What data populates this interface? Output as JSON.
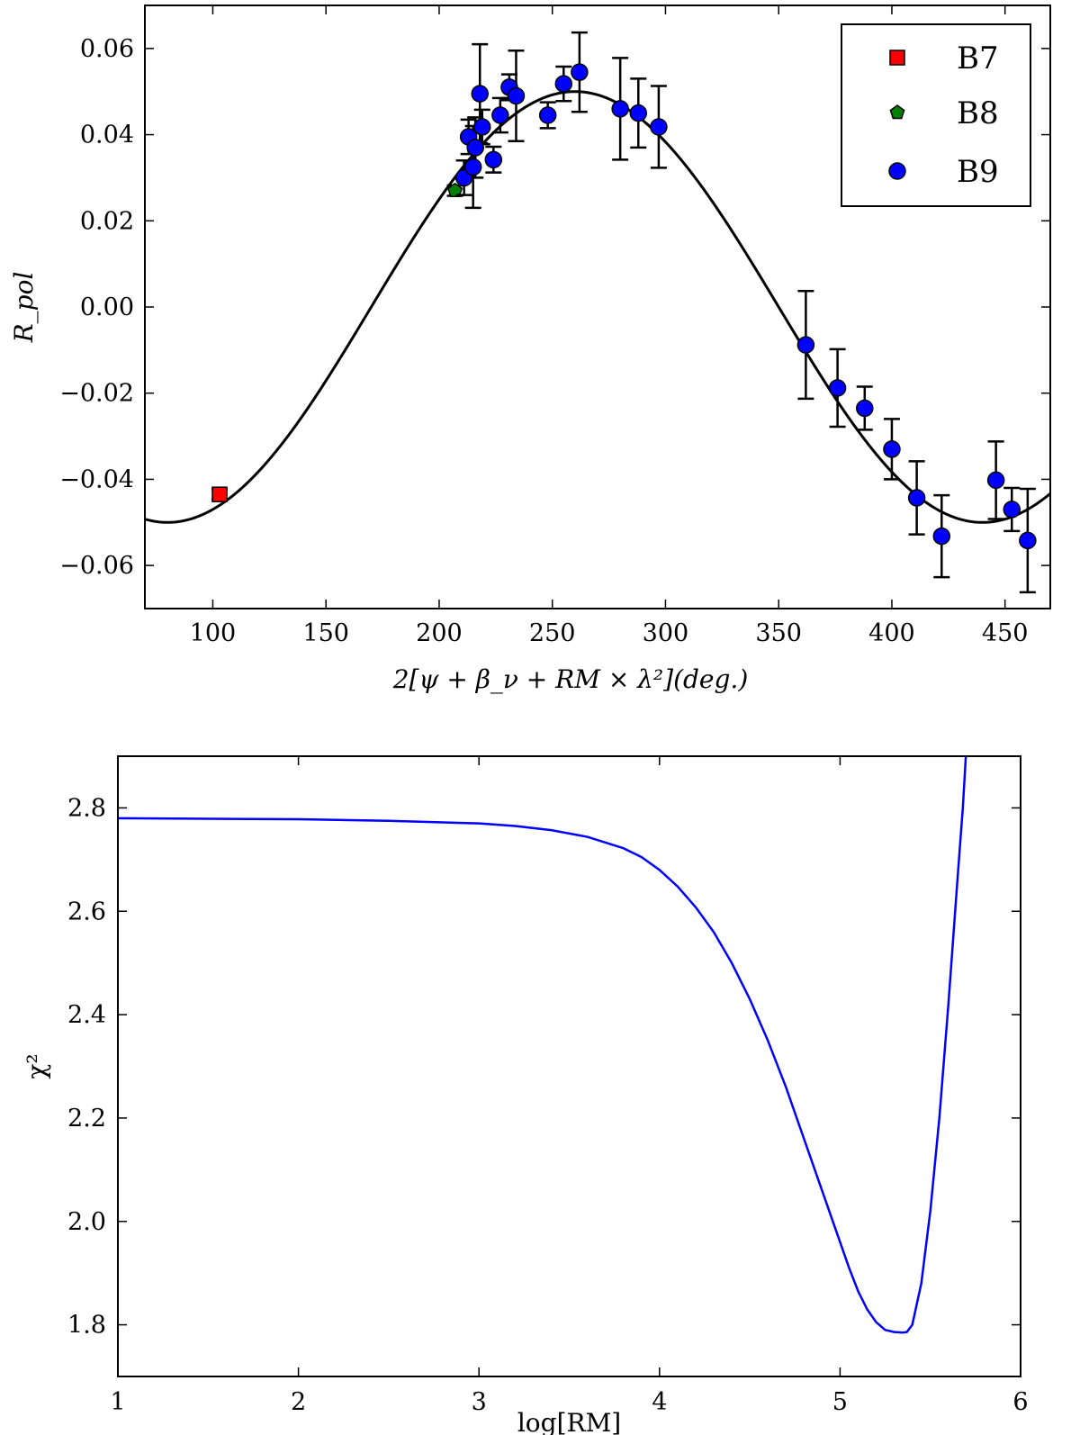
{
  "chart_data": [
    {
      "type": "scatter",
      "id": "top",
      "title": "",
      "xlabel": "2[ψ + β_ν + RM × λ²](deg.)",
      "ylabel": "R_pol",
      "xlim": [
        70,
        470
      ],
      "ylim": [
        -0.07,
        0.07
      ],
      "xticks": [
        100,
        150,
        200,
        250,
        300,
        350,
        400,
        450
      ],
      "yticks": [
        -0.06,
        -0.04,
        -0.02,
        0.0,
        0.02,
        0.04,
        0.06
      ],
      "ytick_labels": [
        "−0.06",
        "−0.04",
        "−0.02",
        "0.00",
        "0.02",
        "0.04",
        "0.06"
      ],
      "legend_position": "top-right",
      "model_curve": {
        "label": "",
        "amplitude": 0.05,
        "peak_x": 260,
        "color": "#000000"
      },
      "series": [
        {
          "name": "B7",
          "marker": "square",
          "color": "#ff0000",
          "points": [
            {
              "x": 103,
              "y": -0.0435,
              "err": 0.0012
            }
          ]
        },
        {
          "name": "B8",
          "marker": "pentagon",
          "color": "#008000",
          "points": [
            {
              "x": 207,
              "y": 0.027,
              "err": 0.0012
            }
          ]
        },
        {
          "name": "B9",
          "marker": "circle",
          "color": "#0000ff",
          "points": [
            {
              "x": 211,
              "y": 0.03,
              "err": 0.004
            },
            {
              "x": 213,
              "y": 0.0395,
              "err": 0.004
            },
            {
              "x": 215,
              "y": 0.0325,
              "err": 0.0095
            },
            {
              "x": 216,
              "y": 0.037,
              "err": 0.007
            },
            {
              "x": 218,
              "y": 0.0495,
              "err": 0.0115
            },
            {
              "x": 219,
              "y": 0.0418,
              "err": 0.004
            },
            {
              "x": 224,
              "y": 0.0342,
              "err": 0.003
            },
            {
              "x": 227,
              "y": 0.0445,
              "err": 0.004
            },
            {
              "x": 231,
              "y": 0.051,
              "err": 0.003
            },
            {
              "x": 234,
              "y": 0.049,
              "err": 0.0105
            },
            {
              "x": 248,
              "y": 0.0445,
              "err": 0.003
            },
            {
              "x": 255,
              "y": 0.0518,
              "err": 0.004
            },
            {
              "x": 262,
              "y": 0.0545,
              "err": 0.0092
            },
            {
              "x": 280,
              "y": 0.046,
              "err": 0.0118
            },
            {
              "x": 288,
              "y": 0.045,
              "err": 0.008
            },
            {
              "x": 297,
              "y": 0.0418,
              "err": 0.0095
            },
            {
              "x": 362,
              "y": -0.0088,
              "err": 0.0125
            },
            {
              "x": 376,
              "y": -0.0188,
              "err": 0.009
            },
            {
              "x": 388,
              "y": -0.0235,
              "err": 0.005
            },
            {
              "x": 400,
              "y": -0.033,
              "err": 0.007
            },
            {
              "x": 411,
              "y": -0.0443,
              "err": 0.0085
            },
            {
              "x": 422,
              "y": -0.0532,
              "err": 0.0095
            },
            {
              "x": 446,
              "y": -0.0402,
              "err": 0.009
            },
            {
              "x": 453,
              "y": -0.047,
              "err": 0.005
            },
            {
              "x": 460,
              "y": -0.0542,
              "err": 0.012
            }
          ]
        }
      ]
    },
    {
      "type": "line",
      "id": "bottom",
      "title": "",
      "xlabel": "log[RM]",
      "ylabel": "χ²",
      "xlim": [
        1,
        6
      ],
      "ylim": [
        1.7,
        2.9
      ],
      "xticks": [
        1,
        2,
        3,
        4,
        5,
        6
      ],
      "yticks": [
        1.8,
        2.0,
        2.2,
        2.4,
        2.6,
        2.8
      ],
      "ytick_labels": [
        "1.8",
        "2.0",
        "2.2",
        "2.4",
        "2.6",
        "2.8"
      ],
      "series": [
        {
          "name": "chi2",
          "color": "#0000ff",
          "x": [
            1.0,
            2.0,
            2.5,
            3.0,
            3.2,
            3.4,
            3.6,
            3.8,
            3.9,
            4.0,
            4.1,
            4.2,
            4.3,
            4.4,
            4.5,
            4.6,
            4.7,
            4.8,
            4.9,
            5.0,
            5.05,
            5.1,
            5.15,
            5.2,
            5.25,
            5.3,
            5.35,
            5.37,
            5.4,
            5.45,
            5.5,
            5.55,
            5.6,
            5.65,
            5.68,
            5.7
          ],
          "y": [
            2.78,
            2.778,
            2.775,
            2.77,
            2.765,
            2.757,
            2.744,
            2.722,
            2.705,
            2.68,
            2.648,
            2.608,
            2.56,
            2.5,
            2.43,
            2.35,
            2.26,
            2.16,
            2.06,
            1.96,
            1.91,
            1.865,
            1.83,
            1.805,
            1.79,
            1.786,
            1.785,
            1.786,
            1.8,
            1.88,
            2.02,
            2.2,
            2.42,
            2.66,
            2.8,
            2.92
          ]
        }
      ]
    }
  ]
}
